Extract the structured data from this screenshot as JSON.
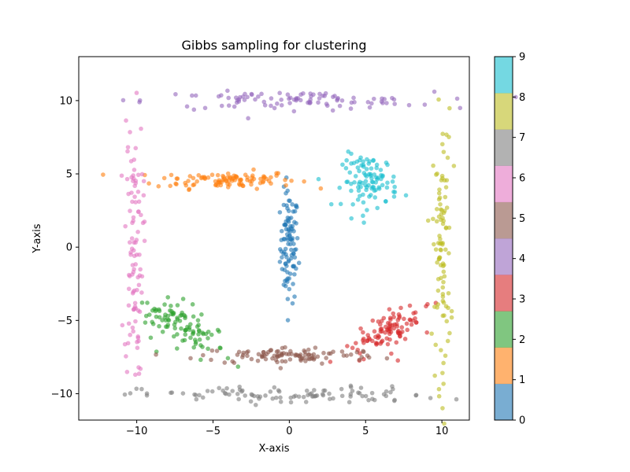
{
  "chart_data": {
    "type": "scatter",
    "title": "Gibbs sampling for clustering",
    "xlabel": "X-axis",
    "ylabel": "Y-axis",
    "xlim": [
      -13.8,
      11.8
    ],
    "ylim": [
      -11.8,
      13.0
    ],
    "xticks": [
      -10,
      -5,
      0,
      5,
      10
    ],
    "yticks": [
      -10,
      -5,
      0,
      5,
      10
    ],
    "grid": false,
    "legend": "none",
    "colorbar": {
      "ticks": [
        0,
        1,
        2,
        3,
        4,
        5,
        6,
        7,
        8,
        9
      ],
      "range": [
        0,
        9
      ],
      "colors": [
        "#1f77b4",
        "#ff7f0e",
        "#2ca02c",
        "#d62728",
        "#9467bd",
        "#8c564b",
        "#e377c2",
        "#7f7f7f",
        "#bcbd22",
        "#17becf"
      ]
    },
    "clusters": [
      {
        "label": 0,
        "center": [
          0.0,
          0.0
        ],
        "spread": [
          0.3,
          1.9
        ],
        "count": 100
      },
      {
        "label": 1,
        "center": [
          -4.2,
          4.6
        ],
        "spread": [
          2.3,
          0.3
        ],
        "count": 100
      },
      {
        "label": 2,
        "center": [
          -7.0,
          -5.5
        ],
        "spread": [
          0.9,
          0.5
        ],
        "count": 100
      },
      {
        "label": 3,
        "center": [
          6.5,
          -5.8
        ],
        "spread": [
          0.8,
          0.5
        ],
        "count": 100
      },
      {
        "label": 4,
        "center": [
          0.0,
          10.0
        ],
        "spread": [
          4.7,
          0.3
        ],
        "count": 100
      },
      {
        "label": 5,
        "center": [
          0.0,
          -7.4
        ],
        "spread": [
          3.0,
          0.3
        ],
        "count": 100
      },
      {
        "label": 6,
        "center": [
          -10.2,
          0.0
        ],
        "spread": [
          0.3,
          4.5
        ],
        "count": 100
      },
      {
        "label": 7,
        "center": [
          0.0,
          -10.1
        ],
        "spread": [
          4.8,
          0.3
        ],
        "count": 100
      },
      {
        "label": 8,
        "center": [
          10.0,
          0.0
        ],
        "spread": [
          0.3,
          4.6
        ],
        "count": 100
      },
      {
        "label": 9,
        "center": [
          5.3,
          4.5
        ],
        "spread": [
          0.9,
          0.9
        ],
        "count": 100
      }
    ]
  }
}
